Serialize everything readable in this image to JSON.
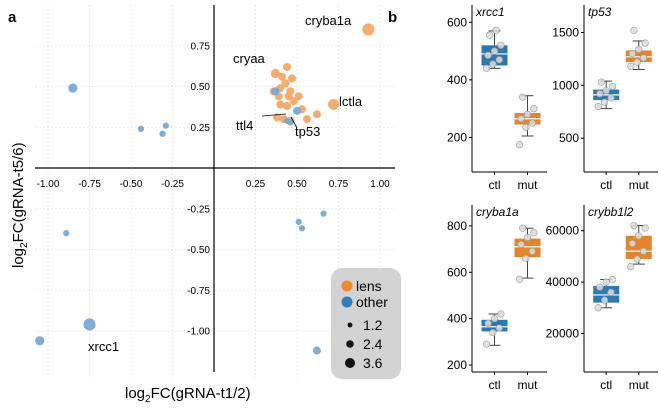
{
  "colors": {
    "lens": "#F5A867",
    "other": "#78AAD4",
    "box_ctl": "#2E78B0",
    "box_mut": "#E2852C",
    "legend_bg": "#D3D3D3"
  },
  "panel_a": {
    "label": "a",
    "xlabel_main": "log",
    "xlabel_sub": "2",
    "xlabel_rest": "FC(gRNA-t1/2)",
    "ylabel_main": "log",
    "ylabel_sub": "2",
    "ylabel_rest": "FC(gRNA-t5/6)",
    "legend": {
      "color_entries": [
        {
          "name": "lens"
        },
        {
          "name": "other"
        }
      ],
      "size_entries": [
        {
          "label": "1.2",
          "size": 1.2
        },
        {
          "label": "2.4",
          "size": 2.4
        },
        {
          "label": "3.6",
          "size": 3.6
        }
      ]
    }
  },
  "panel_b": {
    "label": "b"
  },
  "chart_data": [
    {
      "type": "scatter",
      "xlim": [
        -1.1,
        1.07
      ],
      "ylim": [
        -1.25,
        0.92
      ],
      "x_ticks": [
        "-1.00",
        "-0.75",
        "-0.50",
        "-0.25",
        "0.25",
        "0.50",
        "0.75",
        "1.00"
      ],
      "y_ticks": [
        "0.75",
        "0.50",
        "0.25",
        "-0.25",
        "-0.50",
        "-0.75",
        "-1.00"
      ],
      "grid": true,
      "legend_position": "bottom-right",
      "points": [
        {
          "x": 0.93,
          "y": 0.85,
          "size": 3.0,
          "group": "lens",
          "label": "cryba1a"
        },
        {
          "x": 0.37,
          "y": 0.58,
          "size": 2.0,
          "group": "lens",
          "label": "cryaa"
        },
        {
          "x": 0.72,
          "y": 0.39,
          "size": 2.6,
          "group": "lens",
          "label": "lctla"
        },
        {
          "x": 0.44,
          "y": 0.62,
          "size": 1.6,
          "group": "lens"
        },
        {
          "x": 0.41,
          "y": 0.56,
          "size": 1.6,
          "group": "lens"
        },
        {
          "x": 0.47,
          "y": 0.55,
          "size": 1.6,
          "group": "lens"
        },
        {
          "x": 0.43,
          "y": 0.52,
          "size": 1.6,
          "group": "lens"
        },
        {
          "x": 0.4,
          "y": 0.49,
          "size": 1.6,
          "group": "lens"
        },
        {
          "x": 0.46,
          "y": 0.47,
          "size": 1.6,
          "group": "lens"
        },
        {
          "x": 0.36,
          "y": 0.47,
          "size": 1.6,
          "group": "lens"
        },
        {
          "x": 0.39,
          "y": 0.44,
          "size": 1.6,
          "group": "lens"
        },
        {
          "x": 0.45,
          "y": 0.44,
          "size": 1.6,
          "group": "lens"
        },
        {
          "x": 0.51,
          "y": 0.44,
          "size": 1.6,
          "group": "lens"
        },
        {
          "x": 0.48,
          "y": 0.41,
          "size": 1.6,
          "group": "lens"
        },
        {
          "x": 0.4,
          "y": 0.39,
          "size": 1.6,
          "group": "lens"
        },
        {
          "x": 0.44,
          "y": 0.38,
          "size": 1.6,
          "group": "lens"
        },
        {
          "x": 0.53,
          "y": 0.36,
          "size": 1.6,
          "group": "lens"
        },
        {
          "x": 0.62,
          "y": 0.33,
          "size": 1.6,
          "group": "lens"
        },
        {
          "x": 0.38,
          "y": 0.31,
          "size": 1.6,
          "group": "lens"
        },
        {
          "x": 0.42,
          "y": 0.3,
          "size": 1.6,
          "group": "lens"
        },
        {
          "x": 0.46,
          "y": 0.29,
          "size": 1.6,
          "group": "lens"
        },
        {
          "x": 0.56,
          "y": 0.3,
          "size": 1.6,
          "group": "lens"
        },
        {
          "x": 0.37,
          "y": 0.47,
          "size": 1.6,
          "group": "other"
        },
        {
          "x": 0.5,
          "y": 0.35,
          "size": 1.6,
          "group": "other"
        },
        {
          "x": 0.44,
          "y": 0.29,
          "size": 1.0,
          "group": "other",
          "label": "ttl4"
        },
        {
          "x": 0.46,
          "y": 0.28,
          "size": 1.0,
          "group": "other",
          "label": "tp53"
        },
        {
          "x": -0.85,
          "y": 0.49,
          "size": 2.0,
          "group": "other"
        },
        {
          "x": -0.44,
          "y": 0.24,
          "size": 1.0,
          "group": "other"
        },
        {
          "x": -0.29,
          "y": 0.26,
          "size": 1.0,
          "group": "other"
        },
        {
          "x": -0.31,
          "y": 0.21,
          "size": 1.0,
          "group": "other"
        },
        {
          "x": 0.66,
          "y": -0.28,
          "size": 1.0,
          "group": "other"
        },
        {
          "x": 0.51,
          "y": -0.33,
          "size": 1.0,
          "group": "other"
        },
        {
          "x": 0.53,
          "y": -0.37,
          "size": 1.0,
          "group": "other"
        },
        {
          "x": -0.89,
          "y": -0.4,
          "size": 1.0,
          "group": "other"
        },
        {
          "x": -0.75,
          "y": -0.96,
          "size": 3.0,
          "group": "other",
          "label": "xrcc1"
        },
        {
          "x": -1.05,
          "y": -1.06,
          "size": 2.0,
          "group": "other"
        },
        {
          "x": 0.62,
          "y": -1.12,
          "size": 1.6,
          "group": "other"
        }
      ]
    },
    {
      "type": "box",
      "title": "xrcc1",
      "categories": [
        "ctl",
        "mut"
      ],
      "ylim": [
        80,
        660
      ],
      "y_ticks": [
        200,
        400,
        600
      ],
      "boxes": [
        {
          "q1": 450,
          "median": 490,
          "q3": 520,
          "wlo": 440,
          "whi": 570,
          "points": [
            440,
            455,
            470,
            485,
            500,
            520,
            555,
            572
          ]
        },
        {
          "q1": 245,
          "median": 265,
          "q3": 285,
          "wlo": 205,
          "whi": 345,
          "points": [
            175,
            235,
            250,
            265,
            280,
            300,
            340
          ]
        }
      ]
    },
    {
      "type": "box",
      "title": "tp53",
      "categories": [
        "ctl",
        "mut"
      ],
      "ylim": [
        180,
        1760
      ],
      "y_ticks": [
        500,
        1000,
        1500
      ],
      "boxes": [
        {
          "q1": 860,
          "median": 910,
          "q3": 960,
          "wlo": 780,
          "whi": 1040,
          "points": [
            800,
            840,
            880,
            920,
            950,
            990,
            1030
          ]
        },
        {
          "q1": 1220,
          "median": 1270,
          "q3": 1330,
          "wlo": 1150,
          "whi": 1420,
          "points": [
            1180,
            1220,
            1260,
            1300,
            1340,
            1400,
            1520
          ]
        }
      ]
    },
    {
      "type": "box",
      "title": "cryba1a",
      "categories": [
        "ctl",
        "mut"
      ],
      "ylim": [
        170,
        890
      ],
      "y_ticks": [
        200,
        400,
        600,
        800
      ],
      "boxes": [
        {
          "q1": 345,
          "median": 365,
          "q3": 395,
          "wlo": 285,
          "whi": 420,
          "points": [
            290,
            340,
            360,
            380,
            400,
            420
          ]
        },
        {
          "q1": 665,
          "median": 710,
          "q3": 745,
          "wlo": 575,
          "whi": 790,
          "points": [
            570,
            660,
            690,
            720,
            750,
            770,
            790
          ]
        }
      ]
    },
    {
      "type": "box",
      "title": "crybb1l2",
      "categories": [
        "ctl",
        "mut"
      ],
      "ylim": [
        5000,
        70000
      ],
      "y_ticks": [
        20000,
        40000,
        60000
      ],
      "boxes": [
        {
          "q1": 32000,
          "median": 35000,
          "q3": 38500,
          "wlo": 30000,
          "whi": 41000,
          "points": [
            30000,
            33000,
            36000,
            38000,
            40000,
            41000
          ]
        },
        {
          "q1": 49000,
          "median": 52000,
          "q3": 58000,
          "wlo": 47000,
          "whi": 62000,
          "points": [
            46000,
            49000,
            52000,
            55000,
            58000,
            61000,
            62000
          ]
        }
      ]
    }
  ]
}
